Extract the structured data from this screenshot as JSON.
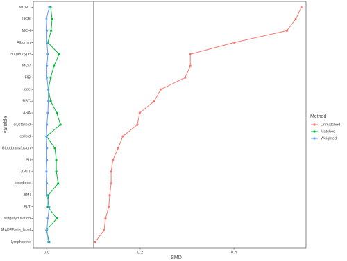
{
  "chart_data": {
    "type": "line",
    "x_label": "SMD",
    "y_label": "variable",
    "legend_title": "Method",
    "categories": [
      "MCHC",
      "HGB",
      "MCH",
      "Albumin",
      "surgerytype",
      "MCV",
      "FIB",
      "age",
      "RBC",
      "ASA",
      "crystalloid",
      "colloid",
      "Bloodtransfusion",
      "SII",
      "APTT",
      "bloodloss",
      "BMI",
      "PLT",
      "surgeryduration",
      "MAP.55min_level",
      "lymphocyte"
    ],
    "series": [
      {
        "name": "Unmatched",
        "color": "#F8766D",
        "values": [
          0.544,
          0.532,
          0.513,
          0.401,
          0.307,
          0.307,
          0.296,
          0.244,
          0.23,
          0.199,
          0.194,
          0.163,
          0.153,
          0.142,
          0.138,
          0.138,
          0.135,
          0.133,
          0.126,
          0.123,
          0.104
        ]
      },
      {
        "name": "Matched",
        "color": "#00BA38",
        "values": [
          0.009,
          0.012,
          0.01,
          0.003,
          0.027,
          0.016,
          0.009,
          0.004,
          0.009,
          0.022,
          0.03,
          0.0,
          0.018,
          0.021,
          0.021,
          0.025,
          0.004,
          0.003,
          0.022,
          0.0,
          0.006
        ]
      },
      {
        "name": "Weighted",
        "color": "#619CFF",
        "values": [
          0.006,
          0.0,
          0.001,
          0.001,
          0.003,
          0.001,
          0.001,
          0.004,
          0.004,
          0.003,
          0.001,
          0.0,
          0.001,
          0.001,
          0.0,
          0.001,
          0.001,
          0.006,
          0.003,
          0.001,
          0.004
        ]
      }
    ],
    "xlim": [
      -0.028,
      0.554
    ],
    "xticks": [
      {
        "value": 0,
        "label": "0.0"
      },
      {
        "value": 0.2,
        "label": "0.2"
      },
      {
        "value": 0.4,
        "label": "0.4"
      }
    ],
    "reference_line": 0.1,
    "legend_position": "right"
  }
}
